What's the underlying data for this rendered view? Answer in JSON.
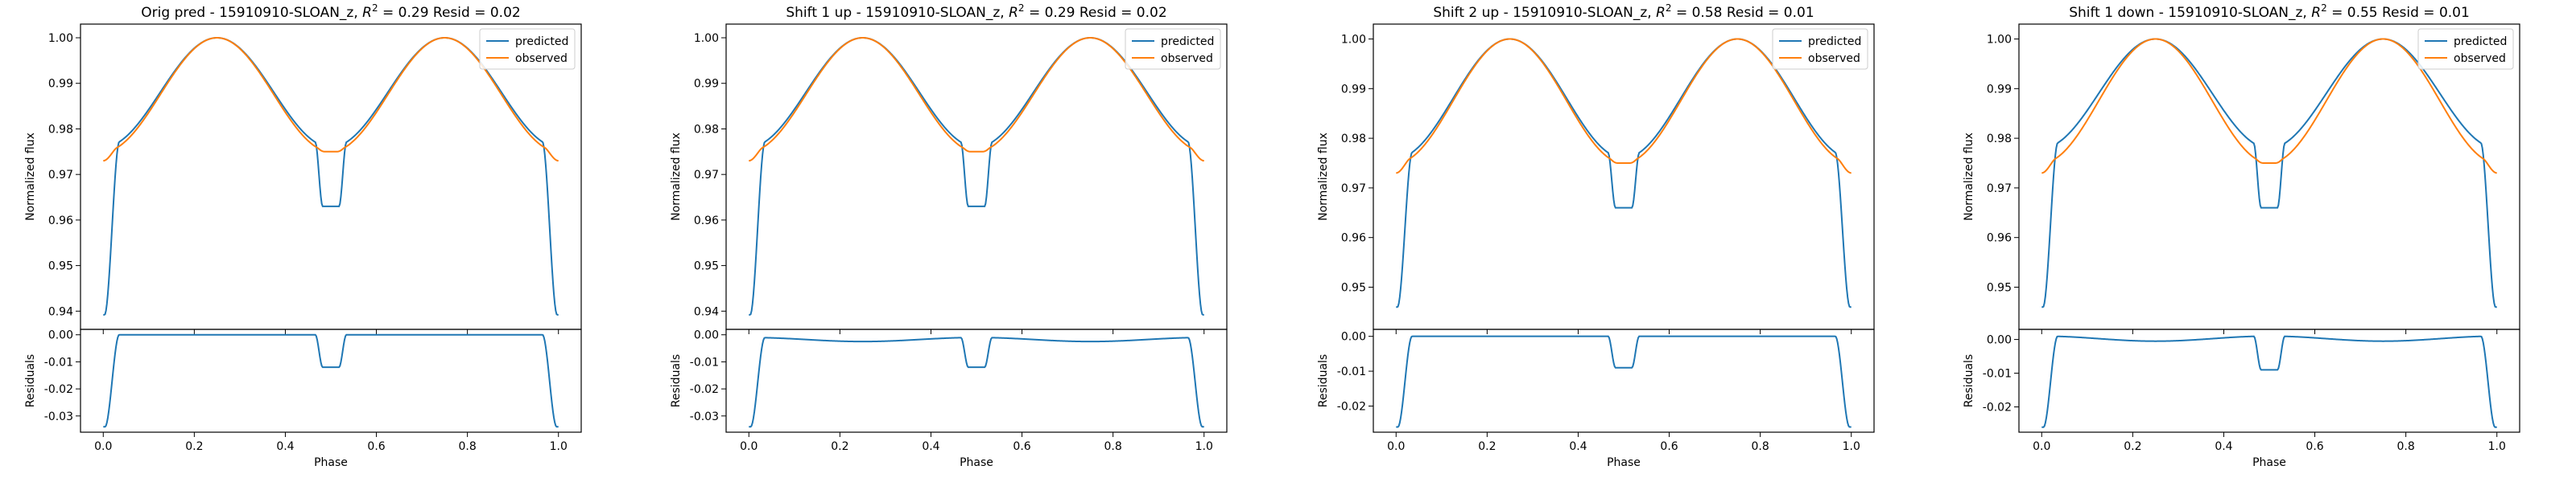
{
  "figure": {
    "background": "#ffffff",
    "colors": {
      "predicted": "#1f77b4",
      "observed": "#ff7f0e"
    }
  },
  "chart_data": [
    {
      "type": "line",
      "title_pre": "Orig pred - 15910910-SLOAN_z, ",
      "title_var": "R",
      "title_sup": "2",
      "title_post": " = 0.29 Resid = 0.02",
      "legend": [
        "predicted",
        "observed"
      ],
      "legend_placement": "top-right",
      "xlabel": "Phase",
      "xlim": [
        -0.05,
        1.05
      ],
      "xticks": [
        "0.0",
        "0.2",
        "0.4",
        "0.6",
        "0.8",
        "1.0"
      ],
      "top": {
        "ylabel": "Normalized flux",
        "ylim": [
          0.936,
          1.003
        ],
        "yticks": [
          "0.94",
          "0.95",
          "0.96",
          "0.97",
          "0.98",
          "0.99",
          "1.00"
        ],
        "predicted": {
          "dip_depth": 0.0608,
          "ellipsoidal_amp": 0.024,
          "ingress_level": 0.976,
          "secondary_level": 0.963
        },
        "observed": {
          "edge_level": 0.973,
          "ellipsoidal_amp": 0.025,
          "secondary_level": 0.975
        }
      },
      "bottom": {
        "ylabel": "Residuals",
        "ylim": [
          -0.036,
          0.002
        ],
        "yticks": [
          "0.00",
          "-0.01",
          "-0.02",
          "-0.03"
        ],
        "plateau": 0.0,
        "secondary_min": -0.012,
        "edge_min": -0.034
      }
    },
    {
      "type": "line",
      "title_pre": "Shift 1 up - 15910910-SLOAN_z, ",
      "title_var": "R",
      "title_sup": "2",
      "title_post": " = 0.29 Resid = 0.02",
      "legend": [
        "predicted",
        "observed"
      ],
      "legend_placement": "top-right",
      "xlabel": "Phase",
      "xlim": [
        -0.05,
        1.05
      ],
      "xticks": [
        "0.0",
        "0.2",
        "0.4",
        "0.6",
        "0.8",
        "1.0"
      ],
      "top": {
        "ylabel": "Normalized flux",
        "ylim": [
          0.936,
          1.003
        ],
        "yticks": [
          "0.94",
          "0.95",
          "0.96",
          "0.97",
          "0.98",
          "0.99",
          "1.00"
        ],
        "predicted": {
          "dip_depth": 0.0608,
          "ellipsoidal_amp": 0.024,
          "ingress_level": 0.976,
          "secondary_level": 0.963
        },
        "observed": {
          "edge_level": 0.973,
          "ellipsoidal_amp": 0.025,
          "secondary_level": 0.975
        }
      },
      "bottom": {
        "ylabel": "Residuals",
        "ylim": [
          -0.036,
          0.002
        ],
        "yticks": [
          "0.00",
          "-0.01",
          "-0.02",
          "-0.03"
        ],
        "plateau": -0.001,
        "secondary_min": -0.012,
        "edge_min": -0.034
      }
    },
    {
      "type": "line",
      "title_pre": "Shift 2 up - 15910910-SLOAN_z, ",
      "title_var": "R",
      "title_sup": "2",
      "title_post": " = 0.58 Resid = 0.01",
      "legend": [
        "predicted",
        "observed"
      ],
      "legend_placement": "top-right",
      "xlabel": "Phase",
      "xlim": [
        -0.05,
        1.05
      ],
      "xticks": [
        "0.0",
        "0.2",
        "0.4",
        "0.6",
        "0.8",
        "1.0"
      ],
      "top": {
        "ylabel": "Normalized flux",
        "ylim": [
          0.9415,
          1.003
        ],
        "yticks": [
          "0.95",
          "0.96",
          "0.97",
          "0.98",
          "0.99",
          "1.00"
        ],
        "predicted": {
          "dip_depth": 0.054,
          "ellipsoidal_amp": 0.024,
          "ingress_level": 0.976,
          "secondary_level": 0.966
        },
        "observed": {
          "edge_level": 0.973,
          "ellipsoidal_amp": 0.025,
          "secondary_level": 0.975
        }
      },
      "bottom": {
        "ylabel": "Residuals",
        "ylim": [
          -0.0275,
          0.002
        ],
        "yticks": [
          "0.00",
          "-0.01",
          "-0.02"
        ],
        "plateau": 0.0,
        "secondary_min": -0.009,
        "edge_min": -0.026
      }
    },
    {
      "type": "line",
      "title_pre": "Shift 1 down - 15910910-SLOAN_z, ",
      "title_var": "R",
      "title_sup": "2",
      "title_post": " = 0.55 Resid = 0.01",
      "legend": [
        "predicted",
        "observed"
      ],
      "legend_placement": "top-right",
      "xlabel": "Phase",
      "xlim": [
        -0.05,
        1.05
      ],
      "xticks": [
        "0.0",
        "0.2",
        "0.4",
        "0.6",
        "0.8",
        "1.0"
      ],
      "top": {
        "ylabel": "Normalized flux",
        "ylim": [
          0.9415,
          1.003
        ],
        "yticks": [
          "0.95",
          "0.96",
          "0.97",
          "0.98",
          "0.99",
          "1.00"
        ],
        "predicted": {
          "dip_depth": 0.054,
          "ellipsoidal_amp": 0.022,
          "ingress_level": 0.978,
          "secondary_level": 0.966
        },
        "observed": {
          "edge_level": 0.973,
          "ellipsoidal_amp": 0.025,
          "secondary_level": 0.975
        }
      },
      "bottom": {
        "ylabel": "Residuals",
        "ylim": [
          -0.0275,
          0.003
        ],
        "yticks": [
          "0.00",
          "-0.01",
          "-0.02"
        ],
        "plateau": 0.001,
        "secondary_min": -0.009,
        "edge_min": -0.026
      }
    }
  ]
}
